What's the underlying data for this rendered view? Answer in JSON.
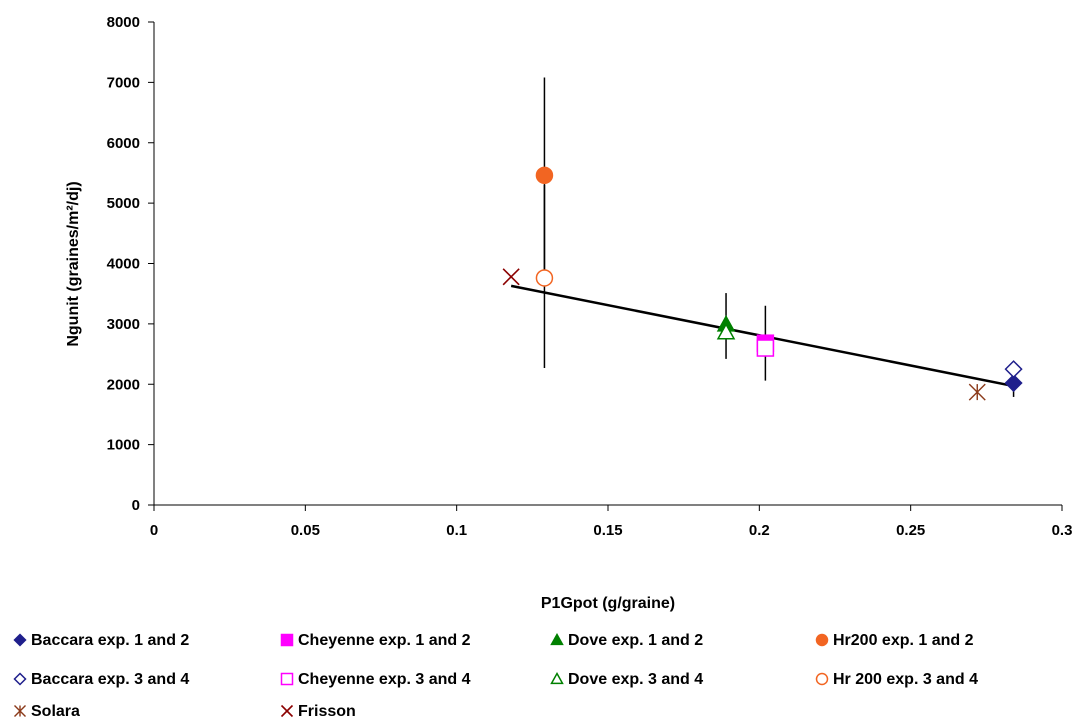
{
  "chart_data": {
    "type": "scatter",
    "title": "",
    "xlabel": "P1Gpot (g/graine)",
    "ylabel": "Ngunit (graines/m²/dj)",
    "xlim": [
      0,
      0.3
    ],
    "ylim": [
      0,
      8000
    ],
    "x_ticks": [
      "0",
      "0.05",
      "0.1",
      "0.15",
      "0.2",
      "0.25",
      "0.3"
    ],
    "y_ticks": [
      "0",
      "1000",
      "2000",
      "3000",
      "4000",
      "5000",
      "6000",
      "7000",
      "8000"
    ],
    "grid": false,
    "legend_position": "bottom",
    "series": [
      {
        "name": "Baccara exp. 1 and 2",
        "marker": "diamond-filled",
        "color": "#1f1f8c",
        "x": 0.284,
        "y": 2020,
        "err_low": 1790,
        "err_high": 2100
      },
      {
        "name": "Cheyenne exp. 1 and 2",
        "marker": "square-filled",
        "color": "#ff00ff",
        "x": 0.202,
        "y": 2680,
        "err_low": 2060,
        "err_high": 3300
      },
      {
        "name": "Dove exp. 1 and 2",
        "marker": "triangle-filled",
        "color": "#008000",
        "x": 0.189,
        "y": 2990,
        "err_low": 2420,
        "err_high": 3510
      },
      {
        "name": "Hr200 exp. 1 and 2",
        "marker": "circle-filled",
        "color": "#f26522",
        "x": 0.129,
        "y": 5460,
        "err_low": 3760,
        "err_high": 7080
      },
      {
        "name": "Baccara exp. 3 and 4",
        "marker": "diamond-open",
        "color": "#1f1f8c",
        "x": 0.284,
        "y": 2250
      },
      {
        "name": "Cheyenne exp. 3 and 4",
        "marker": "square-open",
        "color": "#ff00ff",
        "x": 0.202,
        "y": 2600
      },
      {
        "name": "Dove exp. 3 and 4",
        "marker": "triangle-open",
        "color": "#008000",
        "x": 0.189,
        "y": 2860
      },
      {
        "name": "Hr 200 exp. 3 and 4",
        "marker": "circle-open",
        "color": "#f26522",
        "x": 0.129,
        "y": 3760,
        "err_low": 2270,
        "err_high": 5300
      },
      {
        "name": "Solara",
        "marker": "star",
        "color": "#8b3a1a",
        "x": 0.272,
        "y": 1870
      },
      {
        "name": "Frisson",
        "marker": "x",
        "color": "#8b0000",
        "x": 0.118,
        "y": 3780
      }
    ],
    "trendline": {
      "x": [
        0.118,
        0.284
      ],
      "y": [
        3630,
        1970
      ],
      "color": "#000000"
    }
  }
}
